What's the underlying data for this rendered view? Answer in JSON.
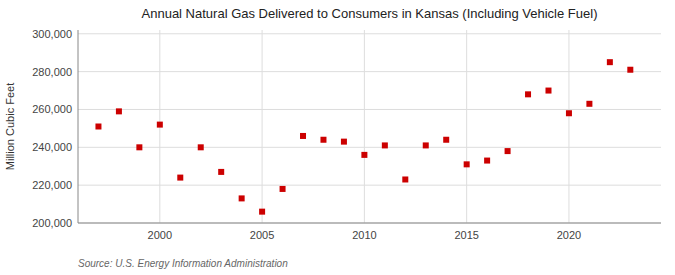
{
  "chart_data": {
    "type": "scatter",
    "title": "Annual Natural Gas Delivered to Consumers in Kansas (Including Vehicle Fuel)",
    "y_label": "Million Cubic Feet",
    "annotations": [
      "Source: U.S. Energy Information Administration"
    ],
    "x": [
      1997,
      1998,
      1999,
      2000,
      2001,
      2002,
      2003,
      2004,
      2005,
      2006,
      2007,
      2008,
      2009,
      2010,
      2011,
      2012,
      2013,
      2014,
      2015,
      2016,
      2017,
      2018,
      2019,
      2020,
      2021,
      2022,
      2023
    ],
    "values": [
      251000,
      259000,
      240000,
      252000,
      224000,
      240000,
      227000,
      213000,
      206000,
      218000,
      246000,
      244000,
      243000,
      236000,
      241000,
      223000,
      241000,
      244000,
      231000,
      233000,
      238000,
      268000,
      270000,
      258000,
      263000,
      285000,
      281000
    ],
    "color": "#cc0000",
    "marker": "square",
    "xlim": [
      1996,
      2024.5
    ],
    "xticks": [
      2000,
      2005,
      2010,
      2015,
      2020
    ],
    "ylim": [
      200000,
      302000
    ],
    "yticks": [
      {
        "value": 200000,
        "label": "200,000"
      },
      {
        "value": 220000,
        "label": "220,000"
      },
      {
        "value": 240000,
        "label": "240,000"
      },
      {
        "value": 260000,
        "label": "260,000"
      },
      {
        "value": 280000,
        "label": "280,000"
      },
      {
        "value": 300000,
        "label": "300,000"
      }
    ],
    "grid": true
  }
}
